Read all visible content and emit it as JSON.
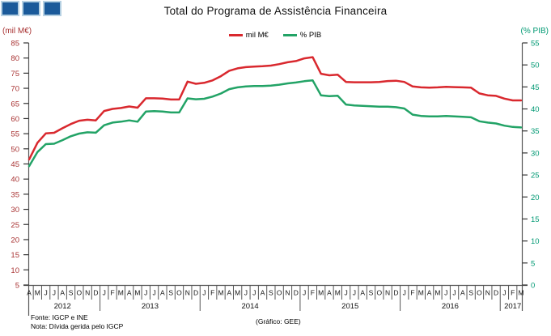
{
  "header": {
    "title": "Total do Programa de Assistência Financeira"
  },
  "legend": [
    {
      "label": "mil M€",
      "color": "#d9282e"
    },
    {
      "label": "% PIB",
      "color": "#22a366"
    }
  ],
  "axis_labels": {
    "left": "(mil M€)",
    "right": "(% PIB)"
  },
  "footer": {
    "source": "Fonte: IGCP e INE",
    "note": "Nota: Dívida gerida pelo IGCP",
    "credit": "(Gráfico: GEE)"
  },
  "logo": {
    "fill": "#1b5a9a",
    "border": "#b5d0e2"
  },
  "chart_data": {
    "type": "line",
    "title": "Total do Programa de Assistência Financeira",
    "grid": false,
    "legend_position": "top-center",
    "x_months": [
      "A",
      "M",
      "J",
      "J",
      "A",
      "S",
      "O",
      "N",
      "D",
      "J",
      "F",
      "M",
      "A",
      "M",
      "J",
      "J",
      "A",
      "S",
      "O",
      "N",
      "D",
      "J",
      "F",
      "M",
      "A",
      "M",
      "J",
      "J",
      "A",
      "S",
      "O",
      "N",
      "D",
      "J",
      "F",
      "M",
      "A",
      "M",
      "J",
      "J",
      "A",
      "S",
      "O",
      "N",
      "D",
      "J",
      "F",
      "M",
      "A",
      "M",
      "J",
      "J",
      "A",
      "S",
      "O",
      "N",
      "D",
      "J",
      "F",
      "M"
    ],
    "year_groups": [
      {
        "label": "2012",
        "months": 9
      },
      {
        "label": "2013",
        "months": 12
      },
      {
        "label": "2014",
        "months": 12
      },
      {
        "label": "2015",
        "months": 12
      },
      {
        "label": "2016",
        "months": 12
      },
      {
        "label": "2017",
        "months": 3
      }
    ],
    "left_axis": {
      "label": "(mil M€)",
      "min": 5,
      "max": 85,
      "step": 5,
      "text_color": "#a83232"
    },
    "right_axis": {
      "label": "(% PIB)",
      "min": 0,
      "max": 55,
      "step": 5,
      "text_color": "#009973"
    },
    "series": [
      {
        "name": "mil M€",
        "axis": "left",
        "color": "#d9282e",
        "values": [
          46.5,
          52.0,
          55.1,
          55.3,
          56.8,
          58.2,
          59.3,
          59.6,
          59.4,
          62.5,
          63.2,
          63.5,
          64.0,
          63.6,
          66.7,
          66.7,
          66.6,
          66.3,
          66.3,
          72.2,
          71.5,
          71.8,
          72.6,
          74.0,
          75.8,
          76.6,
          77.0,
          77.2,
          77.3,
          77.5,
          78.0,
          78.6,
          79.0,
          79.9,
          80.3,
          74.8,
          74.3,
          74.5,
          72.1,
          72.0,
          72.0,
          72.0,
          72.1,
          72.4,
          72.5,
          72.1,
          70.6,
          70.3,
          70.2,
          70.3,
          70.5,
          70.4,
          70.3,
          70.2,
          68.3,
          67.7,
          67.5,
          66.6,
          66.0,
          66.0
        ]
      },
      {
        "name": "% PIB",
        "axis": "right",
        "color": "#22a366",
        "values": [
          27.0,
          30.2,
          32.0,
          32.1,
          32.9,
          33.8,
          34.4,
          34.7,
          34.6,
          36.3,
          36.9,
          37.1,
          37.4,
          37.1,
          39.4,
          39.5,
          39.4,
          39.2,
          39.2,
          42.4,
          42.2,
          42.3,
          42.8,
          43.5,
          44.5,
          44.9,
          45.1,
          45.2,
          45.2,
          45.3,
          45.5,
          45.8,
          46.0,
          46.3,
          46.5,
          43.1,
          42.9,
          43.0,
          41.0,
          40.8,
          40.7,
          40.6,
          40.5,
          40.5,
          40.4,
          40.1,
          38.7,
          38.4,
          38.3,
          38.3,
          38.4,
          38.3,
          38.2,
          38.1,
          37.2,
          36.9,
          36.7,
          36.2,
          35.9,
          35.8
        ]
      }
    ]
  }
}
